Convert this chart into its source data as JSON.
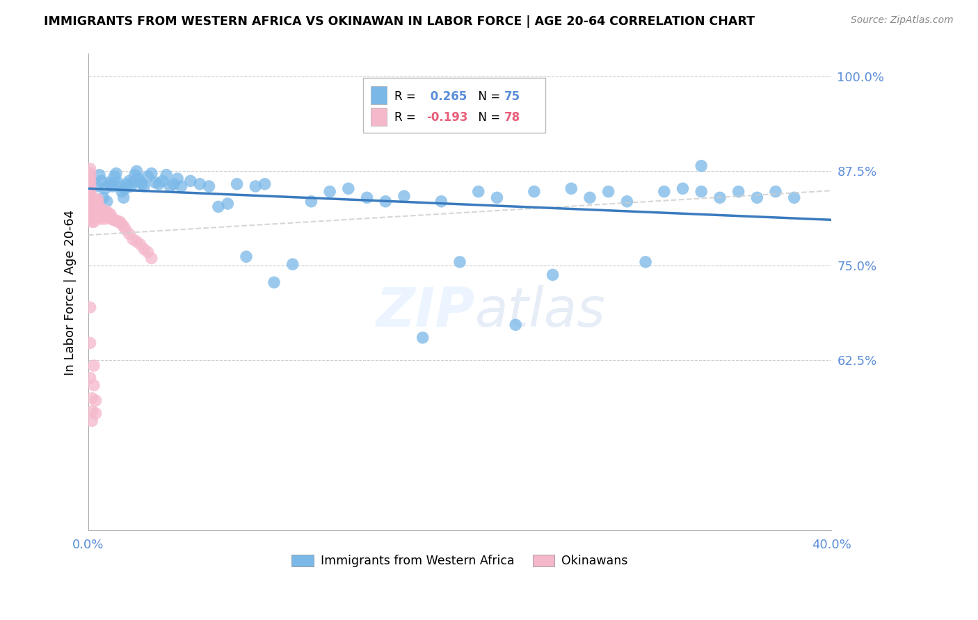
{
  "title": "IMMIGRANTS FROM WESTERN AFRICA VS OKINAWAN IN LABOR FORCE | AGE 20-64 CORRELATION CHART",
  "source": "Source: ZipAtlas.com",
  "ylabel": "In Labor Force | Age 20-64",
  "x_min": 0.0,
  "x_max": 0.4,
  "y_min": 0.4,
  "y_max": 1.03,
  "y_ticks": [
    0.625,
    0.75,
    0.875,
    1.0
  ],
  "y_tick_labels": [
    "62.5%",
    "75.0%",
    "87.5%",
    "100.0%"
  ],
  "blue_R": 0.265,
  "blue_N": 75,
  "pink_R": -0.193,
  "pink_N": 78,
  "legend_label_blue": "Immigrants from Western Africa",
  "legend_label_pink": "Okinawans",
  "watermark": "ZIPatlas",
  "blue_color": "#7ab8e8",
  "blue_line_color": "#3a7bbf",
  "pink_color": "#f5b8cb",
  "pink_line_color": "#cccccc",
  "tick_color": "#5b8dd9",
  "blue_scatter_x": [
    0.005,
    0.006,
    0.007,
    0.008,
    0.009,
    0.01,
    0.011,
    0.012,
    0.013,
    0.014,
    0.015,
    0.016,
    0.017,
    0.018,
    0.019,
    0.02,
    0.021,
    0.022,
    0.023,
    0.024,
    0.025,
    0.026,
    0.027,
    0.028,
    0.029,
    0.03,
    0.032,
    0.034,
    0.036,
    0.038,
    0.04,
    0.042,
    0.044,
    0.046,
    0.048,
    0.05,
    0.055,
    0.06,
    0.065,
    0.07,
    0.075,
    0.08,
    0.085,
    0.09,
    0.095,
    0.1,
    0.11,
    0.12,
    0.13,
    0.14,
    0.15,
    0.16,
    0.17,
    0.18,
    0.19,
    0.2,
    0.21,
    0.22,
    0.23,
    0.24,
    0.25,
    0.26,
    0.27,
    0.28,
    0.29,
    0.3,
    0.31,
    0.32,
    0.33,
    0.34,
    0.35,
    0.36,
    0.37,
    0.38,
    0.33
  ],
  "blue_scatter_y": [
    0.855,
    0.87,
    0.862,
    0.84,
    0.852,
    0.835,
    0.86,
    0.858,
    0.855,
    0.868,
    0.872,
    0.86,
    0.855,
    0.848,
    0.84,
    0.852,
    0.858,
    0.862,
    0.855,
    0.86,
    0.87,
    0.875,
    0.865,
    0.86,
    0.858,
    0.855,
    0.868,
    0.872,
    0.86,
    0.858,
    0.862,
    0.87,
    0.855,
    0.858,
    0.865,
    0.855,
    0.862,
    0.858,
    0.855,
    0.828,
    0.832,
    0.858,
    0.762,
    0.855,
    0.858,
    0.728,
    0.752,
    0.835,
    0.848,
    0.852,
    0.84,
    0.835,
    0.842,
    0.655,
    0.835,
    0.755,
    0.848,
    0.84,
    0.672,
    0.848,
    0.738,
    0.852,
    0.84,
    0.848,
    0.835,
    0.755,
    0.848,
    0.852,
    0.848,
    0.84,
    0.848,
    0.84,
    0.848,
    0.84,
    0.882
  ],
  "pink_scatter_x": [
    0.001,
    0.001,
    0.001,
    0.001,
    0.001,
    0.001,
    0.001,
    0.001,
    0.001,
    0.001,
    0.001,
    0.001,
    0.002,
    0.002,
    0.002,
    0.002,
    0.002,
    0.002,
    0.002,
    0.002,
    0.002,
    0.003,
    0.003,
    0.003,
    0.003,
    0.003,
    0.003,
    0.003,
    0.004,
    0.004,
    0.004,
    0.004,
    0.004,
    0.005,
    0.005,
    0.005,
    0.006,
    0.006,
    0.006,
    0.007,
    0.007,
    0.007,
    0.008,
    0.008,
    0.009,
    0.009,
    0.01,
    0.01,
    0.011,
    0.012,
    0.012,
    0.013,
    0.014,
    0.015,
    0.016,
    0.017,
    0.018,
    0.019,
    0.02,
    0.022,
    0.024,
    0.026,
    0.028,
    0.03,
    0.032,
    0.034,
    0.001,
    0.001,
    0.001,
    0.002,
    0.002,
    0.002,
    0.003,
    0.003,
    0.004,
    0.004,
    0.005,
    0.005
  ],
  "pink_scatter_y": [
    0.878,
    0.872,
    0.868,
    0.862,
    0.858,
    0.852,
    0.848,
    0.842,
    0.838,
    0.832,
    0.828,
    0.822,
    0.84,
    0.835,
    0.828,
    0.822,
    0.818,
    0.812,
    0.808,
    0.818,
    0.825,
    0.838,
    0.832,
    0.828,
    0.822,
    0.818,
    0.812,
    0.808,
    0.835,
    0.828,
    0.822,
    0.818,
    0.812,
    0.832,
    0.825,
    0.818,
    0.828,
    0.822,
    0.815,
    0.825,
    0.818,
    0.812,
    0.822,
    0.815,
    0.82,
    0.812,
    0.822,
    0.815,
    0.818,
    0.818,
    0.812,
    0.812,
    0.81,
    0.81,
    0.808,
    0.808,
    0.805,
    0.802,
    0.798,
    0.792,
    0.785,
    0.782,
    0.778,
    0.772,
    0.768,
    0.76,
    0.695,
    0.648,
    0.602,
    0.575,
    0.558,
    0.545,
    0.592,
    0.618,
    0.572,
    0.555,
    0.838,
    0.835
  ]
}
